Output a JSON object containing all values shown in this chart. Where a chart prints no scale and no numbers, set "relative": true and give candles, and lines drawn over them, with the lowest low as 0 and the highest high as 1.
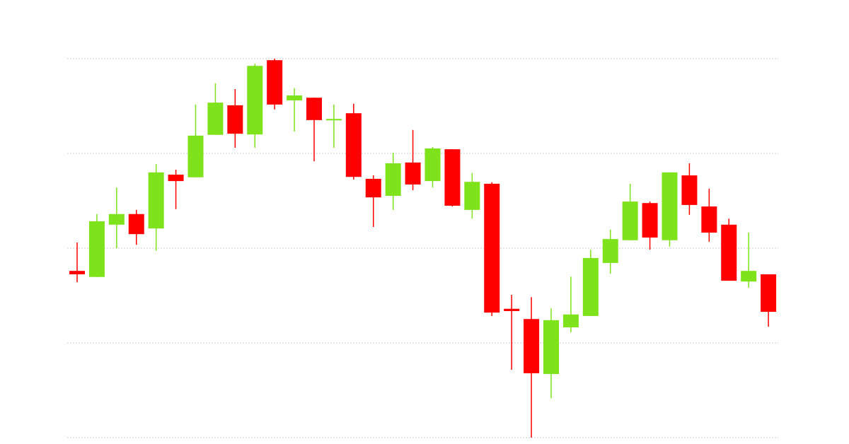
{
  "chart_data": {
    "type": "candlestick",
    "relative": true,
    "grid": "y",
    "categories": [
      null,
      null,
      null,
      null,
      null,
      null,
      null,
      null,
      null,
      null,
      null,
      null,
      null,
      null,
      null,
      null,
      null,
      null,
      null,
      null,
      null,
      null,
      null,
      null,
      null,
      null,
      null,
      null,
      null,
      null,
      null,
      null,
      null,
      null,
      null,
      null
    ],
    "ohlc": [
      [
        0.44,
        0.515,
        0.41,
        0.431
      ],
      [
        0.424,
        0.59,
        0.424,
        0.571
      ],
      [
        0.562,
        0.66,
        0.5,
        0.59
      ],
      [
        0.59,
        0.601,
        0.509,
        0.537
      ],
      [
        0.552,
        0.722,
        0.493,
        0.7
      ],
      [
        0.694,
        0.707,
        0.603,
        0.677
      ],
      [
        0.687,
        0.879,
        0.687,
        0.797
      ],
      [
        0.799,
        0.935,
        0.799,
        0.884
      ],
      [
        0.877,
        0.92,
        0.765,
        0.802
      ],
      [
        0.8,
        0.987,
        0.765,
        0.981
      ],
      [
        0.996,
        1,
        0.866,
        0.879
      ],
      [
        0.89,
        0.922,
        0.808,
        0.903
      ],
      [
        0.897,
        0.897,
        0.729,
        0.838
      ],
      [
        0.838,
        0.879,
        0.765,
        0.841
      ],
      [
        0.856,
        0.881,
        0.681,
        0.688
      ],
      [
        0.683,
        0.692,
        0.556,
        0.634
      ],
      [
        0.638,
        0.752,
        0.601,
        0.724
      ],
      [
        0.726,
        0.812,
        0.653,
        0.668
      ],
      [
        0.677,
        0.767,
        0.66,
        0.763
      ],
      [
        0.761,
        0.761,
        0.61,
        0.612
      ],
      [
        0.601,
        0.698,
        0.578,
        0.675
      ],
      [
        0.67,
        0.674,
        0.321,
        0.33
      ],
      [
        0.34,
        0.377,
        0.179,
        0.334
      ],
      [
        0.313,
        0.371,
        0,
        0.17
      ],
      [
        0.168,
        0.341,
        0.104,
        0.31
      ],
      [
        0.291,
        0.425,
        0.278,
        0.325
      ],
      [
        0.321,
        0.496,
        0.321,
        0.474
      ],
      [
        0.461,
        0.549,
        0.433,
        0.524
      ],
      [
        0.521,
        0.67,
        0.521,
        0.623
      ],
      [
        0.619,
        0.623,
        0.496,
        0.528
      ],
      [
        0.521,
        0.7,
        0.504,
        0.7
      ],
      [
        0.692,
        0.724,
        0.588,
        0.614
      ],
      [
        0.61,
        0.657,
        0.517,
        0.541
      ],
      [
        0.562,
        0.578,
        0.414,
        0.414
      ],
      [
        0.412,
        0.541,
        0.396,
        0.44
      ],
      [
        0.431,
        0.431,
        0.293,
        0.332
      ]
    ],
    "colors": [
      "#ff0000",
      "#7ee31a",
      "#7ee31a",
      "#ff0000",
      "#7ee31a",
      "#ff0000",
      "#7ee31a",
      "#7ee31a",
      "#ff0000",
      "#7ee31a",
      "#ff0000",
      "#7ee31a",
      "#ff0000",
      "#7ee31a",
      "#ff0000",
      "#ff0000",
      "#7ee31a",
      "#ff0000",
      "#7ee31a",
      "#ff0000",
      "#7ee31a",
      "#ff0000",
      "#ff0000",
      "#ff0000",
      "#7ee31a",
      "#7ee31a",
      "#7ee31a",
      "#7ee31a",
      "#7ee31a",
      "#ff0000",
      "#7ee31a",
      "#ff0000",
      "#ff0000",
      "#ff0000",
      "#7ee31a",
      "#ff0000"
    ]
  }
}
